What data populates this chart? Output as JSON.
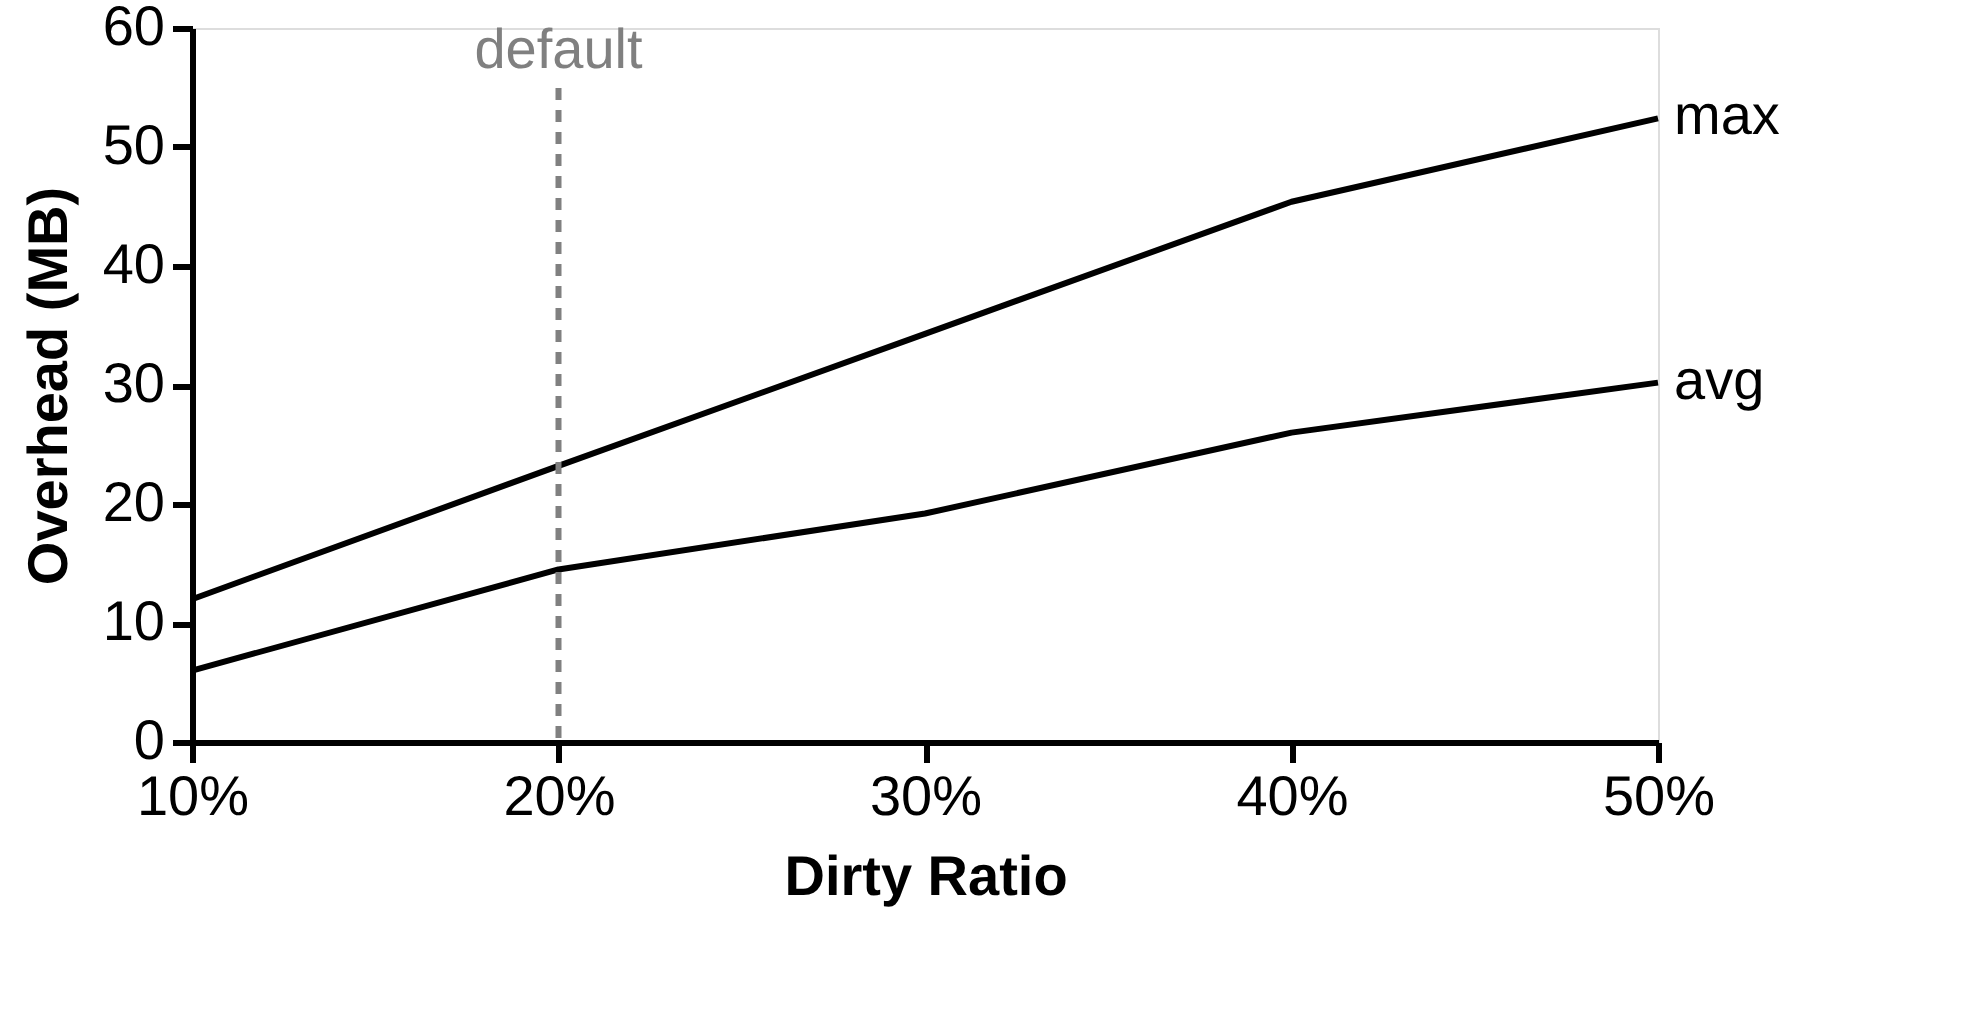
{
  "chart_data": {
    "type": "line",
    "xlabel": "Dirty Ratio",
    "ylabel": "Overhead (MB)",
    "x": [
      10,
      20,
      30,
      40,
      50
    ],
    "series": [
      {
        "name": "max",
        "color": "#000000",
        "values": [
          12,
          23.2,
          34.3,
          45.4,
          52.4
        ]
      },
      {
        "name": "avg",
        "color": "#000000",
        "values": [
          6,
          14.5,
          19.2,
          26,
          30.2
        ]
      }
    ],
    "xlim": [
      10,
      50
    ],
    "xticks": [
      {
        "value": 10,
        "label": "10%"
      },
      {
        "value": 20,
        "label": "20%"
      },
      {
        "value": 30,
        "label": "30%"
      },
      {
        "value": 40,
        "label": "40%"
      },
      {
        "value": 50,
        "label": "50%"
      }
    ],
    "ylim": [
      0,
      60
    ],
    "yticks": [
      0,
      10,
      20,
      30,
      40,
      50,
      60
    ],
    "ref_lines": [
      {
        "axis": "x",
        "value": 20,
        "label": "default",
        "color": "#808080",
        "line_style": "dashed"
      }
    ],
    "grid": false,
    "marker": "none",
    "line_style": "solid"
  }
}
